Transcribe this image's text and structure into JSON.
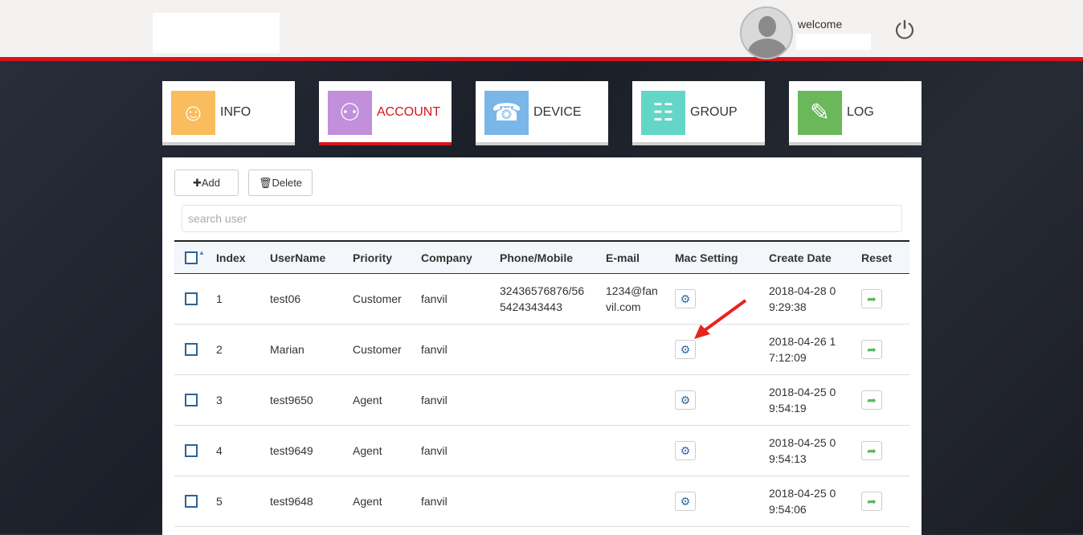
{
  "header": {
    "welcome": "welcome",
    "power_icon": "power-icon"
  },
  "nav": [
    {
      "label": "INFO",
      "color": "#f9bd5e",
      "icon": "user-icon",
      "glyph": "☺"
    },
    {
      "label": "ACCOUNT",
      "color": "#c28fdb",
      "icon": "users-icon",
      "glyph": "⚇",
      "active": true
    },
    {
      "label": "DEVICE",
      "color": "#7ab6e8",
      "icon": "telephone-icon",
      "glyph": "☎"
    },
    {
      "label": "GROUP",
      "color": "#63d6c8",
      "icon": "server-icon",
      "glyph": "☷"
    },
    {
      "label": "LOG",
      "color": "#6ab85a",
      "icon": "document-icon",
      "glyph": "✎"
    }
  ],
  "toolbar": {
    "add": "✚Add",
    "delete": "🗑Delete"
  },
  "search": {
    "placeholder": "search user",
    "value": ""
  },
  "table": {
    "columns": [
      "Index",
      "UserName",
      "Priority",
      "Company",
      "Phone/Mobile",
      "E-mail",
      "Mac Setting",
      "Create Date",
      "Reset"
    ],
    "rows": [
      {
        "index": "1",
        "username": "test06",
        "priority": "Customer",
        "company": "fanvil",
        "phone": "32436576876/56\n5424343443",
        "email": "1234@fan\nvil.com",
        "date": "2018-04-28 0\n9:29:38"
      },
      {
        "index": "2",
        "username": "Marian",
        "priority": "Customer",
        "company": "fanvil",
        "phone": "",
        "email": "",
        "date": "2018-04-26 1\n7:12:09"
      },
      {
        "index": "3",
        "username": "test9650",
        "priority": "Agent",
        "company": "fanvil",
        "phone": "",
        "email": "",
        "date": "2018-04-25 0\n9:54:19"
      },
      {
        "index": "4",
        "username": "test9649",
        "priority": "Agent",
        "company": "fanvil",
        "phone": "",
        "email": "",
        "date": "2018-04-25 0\n9:54:13"
      },
      {
        "index": "5",
        "username": "test9648",
        "priority": "Agent",
        "company": "fanvil",
        "phone": "",
        "email": "",
        "date": "2018-04-25 0\n9:54:06"
      }
    ]
  }
}
